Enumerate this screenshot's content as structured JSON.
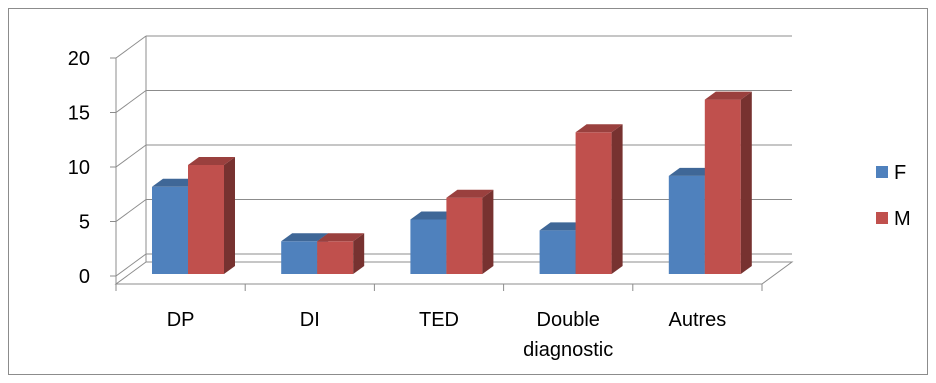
{
  "chart_data": {
    "type": "bar",
    "title": "",
    "xlabel": "",
    "ylabel": "",
    "ylim": [
      0,
      20
    ],
    "y_ticks": [
      "0",
      "5",
      "10",
      "15",
      "20"
    ],
    "categories": [
      [
        "DP"
      ],
      [
        "DI"
      ],
      [
        "TED"
      ],
      [
        "Double",
        "diagnostic"
      ],
      [
        "Autres"
      ]
    ],
    "series": [
      {
        "name": "F",
        "values": [
          8,
          3,
          5,
          4,
          9
        ],
        "color": "#4F81BD"
      },
      {
        "name": "M",
        "values": [
          10,
          3,
          7,
          13,
          16
        ],
        "color": "#C0504D"
      }
    ],
    "legend_position": "right",
    "grid": true,
    "style": "3d-clustered-column"
  }
}
